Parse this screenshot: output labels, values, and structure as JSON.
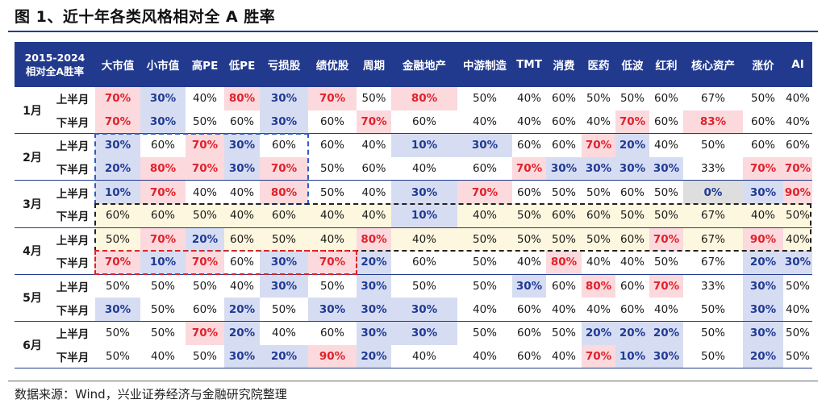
{
  "title": "图 1、近十年各类风格相对全 A 胜率",
  "corner_line1": "2015-2024",
  "corner_line2": "相对全A胜率",
  "columns": [
    "大市值",
    "小市值",
    "高PE",
    "低PE",
    "亏损股",
    "绩优股",
    "周期",
    "金融地产",
    "中游制造",
    "TMT",
    "消费",
    "医药",
    "低波",
    "红利",
    "核心资产",
    "涨价",
    "AI"
  ],
  "months": [
    {
      "label": "1月",
      "rows": [
        {
          "half": "上半月",
          "values": [
            "70%",
            "30%",
            "40%",
            "80%",
            "30%",
            "70%",
            "50%",
            "80%",
            "50%",
            "40%",
            "60%",
            "50%",
            "50%",
            "60%",
            "67%",
            "50%",
            "40%"
          ]
        },
        {
          "half": "下半月",
          "values": [
            "70%",
            "30%",
            "50%",
            "60%",
            "30%",
            "60%",
            "70%",
            "60%",
            "40%",
            "40%",
            "60%",
            "40%",
            "70%",
            "60%",
            "83%",
            "60%",
            "40%"
          ]
        }
      ]
    },
    {
      "label": "2月",
      "rows": [
        {
          "half": "上半月",
          "values": [
            "30%",
            "60%",
            "70%",
            "30%",
            "60%",
            "60%",
            "40%",
            "10%",
            "30%",
            "60%",
            "60%",
            "70%",
            "20%",
            "40%",
            "50%",
            "60%",
            "60%"
          ]
        },
        {
          "half": "下半月",
          "values": [
            "20%",
            "80%",
            "70%",
            "30%",
            "70%",
            "50%",
            "60%",
            "40%",
            "60%",
            "70%",
            "30%",
            "30%",
            "30%",
            "30%",
            "33%",
            "70%",
            "70%"
          ]
        }
      ]
    },
    {
      "label": "3月",
      "rows": [
        {
          "half": "上半月",
          "values": [
            "10%",
            "70%",
            "40%",
            "40%",
            "80%",
            "50%",
            "40%",
            "30%",
            "70%",
            "60%",
            "50%",
            "50%",
            "60%",
            "50%",
            "0%",
            "30%",
            "90%"
          ]
        },
        {
          "half": "下半月",
          "values": [
            "60%",
            "60%",
            "50%",
            "40%",
            "60%",
            "40%",
            "40%",
            "10%",
            "40%",
            "50%",
            "60%",
            "60%",
            "50%",
            "50%",
            "67%",
            "40%",
            "50%"
          ]
        }
      ]
    },
    {
      "label": "4月",
      "rows": [
        {
          "half": "上半月",
          "values": [
            "50%",
            "70%",
            "20%",
            "60%",
            "50%",
            "40%",
            "80%",
            "40%",
            "50%",
            "50%",
            "50%",
            "50%",
            "60%",
            "70%",
            "67%",
            "90%",
            "40%"
          ]
        },
        {
          "half": "下半月",
          "values": [
            "70%",
            "10%",
            "70%",
            "60%",
            "30%",
            "70%",
            "20%",
            "60%",
            "50%",
            "40%",
            "80%",
            "40%",
            "40%",
            "50%",
            "67%",
            "20%",
            "30%"
          ]
        }
      ]
    },
    {
      "label": "5月",
      "rows": [
        {
          "half": "上半月",
          "values": [
            "50%",
            "50%",
            "50%",
            "40%",
            "30%",
            "50%",
            "30%",
            "50%",
            "50%",
            "30%",
            "60%",
            "80%",
            "60%",
            "70%",
            "33%",
            "30%",
            "50%"
          ]
        },
        {
          "half": "下半月",
          "values": [
            "30%",
            "50%",
            "60%",
            "20%",
            "50%",
            "30%",
            "30%",
            "30%",
            "40%",
            "60%",
            "40%",
            "40%",
            "60%",
            "40%",
            "50%",
            "30%",
            "40%"
          ]
        }
      ]
    },
    {
      "label": "6月",
      "rows": [
        {
          "half": "上半月",
          "values": [
            "50%",
            "50%",
            "70%",
            "20%",
            "40%",
            "60%",
            "30%",
            "30%",
            "50%",
            "60%",
            "50%",
            "20%",
            "20%",
            "20%",
            "50%",
            "30%",
            "50%"
          ]
        },
        {
          "half": "下半月",
          "values": [
            "50%",
            "40%",
            "50%",
            "30%",
            "20%",
            "90%",
            "20%",
            "40%",
            "40%",
            "60%",
            "40%",
            "70%",
            "10%",
            "30%",
            "50%",
            "20%",
            "50%"
          ]
        }
      ]
    }
  ],
  "cell_colors": {
    "red": "#e0222c",
    "blue": "#213a94",
    "red_bg": "#fbd9dd",
    "blue_bg": "#d6ddf2",
    "header_bg": "#223a8e"
  },
  "source": "数据来源：Wind，兴业证券经济与金融研究院整理"
}
